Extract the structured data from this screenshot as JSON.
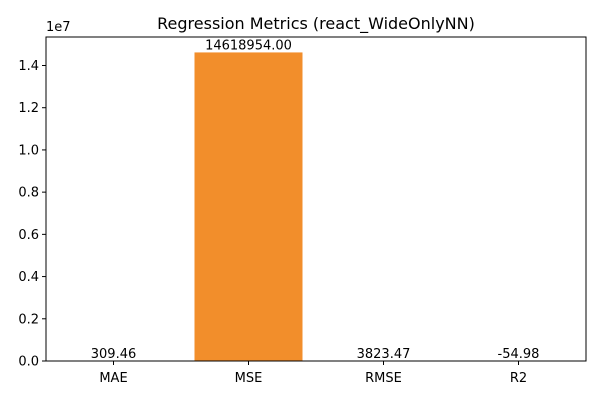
{
  "chart_data": {
    "type": "bar",
    "title": "Regression Metrics (react_WideOnlyNN)",
    "categories": [
      "MAE",
      "MSE",
      "RMSE",
      "R2"
    ],
    "values": [
      309.46,
      14618954.0,
      3823.47,
      -54.98
    ],
    "data_labels": [
      "309.46",
      "14618954.00",
      "3823.47",
      "-54.98"
    ],
    "xlabel": "",
    "ylabel": "",
    "ylim": [
      0,
      15350000
    ],
    "y_ticks": [
      0,
      2000000,
      4000000,
      6000000,
      8000000,
      10000000,
      12000000,
      14000000
    ],
    "y_tick_labels": [
      "0.0",
      "0.2",
      "0.4",
      "0.6",
      "0.8",
      "1.0",
      "1.2",
      "1.4"
    ],
    "y_offset_label": "1e7",
    "grid": false,
    "bar_colors": [
      "#1f77b4",
      "#f28e2b",
      "#2ca02c",
      "#d62728"
    ]
  }
}
